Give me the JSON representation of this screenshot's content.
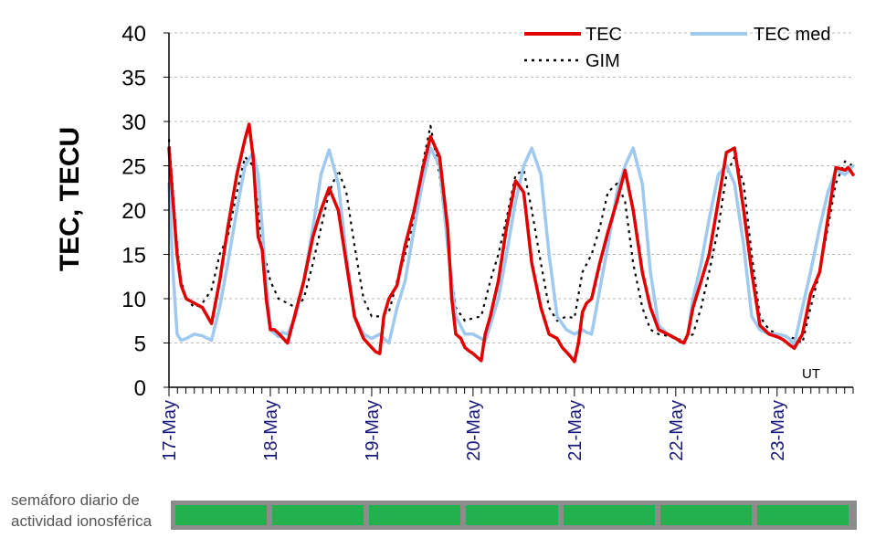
{
  "chart_data": {
    "type": "line",
    "ylabel": "TEC, TECU",
    "xlabel": "",
    "ylim": [
      0,
      40
    ],
    "yticks": [
      0,
      5,
      10,
      15,
      20,
      25,
      30,
      35,
      40
    ],
    "xlim": [
      0,
      6.75
    ],
    "day_labels": [
      "17-May",
      "18-May",
      "19-May",
      "20-May",
      "21-May",
      "22-May",
      "23-May"
    ],
    "x_unit_label": "UT",
    "grid": "horizontal dashed",
    "legend_position": "top-right",
    "series": [
      {
        "name": "TEC",
        "color": "#e00000",
        "style": "solid",
        "x": [
          0,
          0.04,
          0.08,
          0.12,
          0.17,
          0.25,
          0.33,
          0.42,
          0.5,
          0.58,
          0.67,
          0.75,
          0.79,
          0.83,
          0.88,
          0.92,
          0.96,
          1.0,
          1.04,
          1.08,
          1.12,
          1.17,
          1.25,
          1.33,
          1.42,
          1.5,
          1.58,
          1.67,
          1.75,
          1.83,
          1.92,
          2.0,
          2.04,
          2.08,
          2.12,
          2.17,
          2.25,
          2.33,
          2.42,
          2.5,
          2.58,
          2.67,
          2.75,
          2.79,
          2.83,
          2.88,
          2.92,
          2.96,
          3.0,
          3.04,
          3.08,
          3.12,
          3.17,
          3.25,
          3.33,
          3.42,
          3.5,
          3.58,
          3.67,
          3.75,
          3.83,
          3.88,
          3.92,
          3.96,
          4.0,
          4.04,
          4.08,
          4.12,
          4.17,
          4.25,
          4.33,
          4.42,
          4.5,
          4.58,
          4.67,
          4.75,
          4.83,
          4.92,
          5.0,
          5.04,
          5.08,
          5.12,
          5.17,
          5.25,
          5.33,
          5.42,
          5.5,
          5.58,
          5.67,
          5.75,
          5.83,
          5.92,
          6.0,
          6.04,
          6.08,
          6.12,
          6.17,
          6.25,
          6.33,
          6.42,
          6.5,
          6.58,
          6.67,
          6.7,
          6.75
        ],
        "values": [
          27,
          21,
          15,
          11.5,
          10,
          9.5,
          9,
          7.2,
          12,
          18,
          24,
          28,
          29.7,
          26,
          17,
          15.5,
          10,
          6.5,
          6.5,
          6.1,
          5.6,
          5.0,
          8.5,
          12,
          17,
          20,
          22.5,
          20,
          14,
          8,
          5.5,
          4.5,
          4.0,
          3.8,
          8,
          10,
          11.5,
          16,
          20,
          24.5,
          28.3,
          26,
          18,
          10,
          6,
          5.5,
          4.5,
          4.1,
          3.8,
          3.4,
          3.0,
          6,
          8,
          12,
          18,
          23.3,
          22,
          14,
          9,
          6,
          5.5,
          4.5,
          4.0,
          3.5,
          2.9,
          5,
          8.5,
          9.5,
          10,
          14,
          17.5,
          21,
          24.5,
          20,
          13,
          9,
          6.5,
          6,
          5.5,
          5.2,
          5.0,
          6,
          9,
          12,
          15,
          21,
          26.5,
          27,
          20,
          13,
          7,
          6,
          5.7,
          5.5,
          5.2,
          4.8,
          4.4,
          6,
          10.5,
          13,
          19,
          24.8,
          24.5,
          24.8,
          24
        ]
      },
      {
        "name": "TEC med",
        "color": "#9fc9ee",
        "style": "solid",
        "x": [
          0,
          0.04,
          0.08,
          0.12,
          0.17,
          0.25,
          0.33,
          0.42,
          0.5,
          0.58,
          0.67,
          0.75,
          0.83,
          0.88,
          0.92,
          0.96,
          1.0,
          1.08,
          1.12,
          1.17,
          1.25,
          1.33,
          1.42,
          1.5,
          1.58,
          1.67,
          1.75,
          1.83,
          1.92,
          2.0,
          2.08,
          2.12,
          2.17,
          2.25,
          2.33,
          2.42,
          2.5,
          2.58,
          2.67,
          2.75,
          2.83,
          2.92,
          3.0,
          3.08,
          3.12,
          3.17,
          3.25,
          3.33,
          3.42,
          3.5,
          3.58,
          3.67,
          3.75,
          3.83,
          3.92,
          4.0,
          4.08,
          4.12,
          4.17,
          4.25,
          4.33,
          4.42,
          4.5,
          4.58,
          4.67,
          4.75,
          4.83,
          4.92,
          5.0,
          5.08,
          5.12,
          5.17,
          5.25,
          5.33,
          5.42,
          5.5,
          5.58,
          5.67,
          5.75,
          5.83,
          5.92,
          6.0,
          6.08,
          6.12,
          6.17,
          6.25,
          6.33,
          6.42,
          6.5,
          6.58,
          6.67,
          6.75
        ],
        "values": [
          23,
          13,
          6,
          5.3,
          5.5,
          6,
          5.8,
          5.3,
          9,
          14,
          20,
          25,
          26.5,
          24,
          18,
          12,
          6.5,
          5.7,
          6.2,
          6.0,
          8,
          12,
          18,
          24,
          26.8,
          23,
          15,
          8,
          6,
          5.5,
          6,
          5.5,
          5.0,
          9,
          12,
          18,
          23,
          27,
          25,
          16,
          8,
          6,
          6,
          5.5,
          5.2,
          7,
          10,
          15,
          21,
          25,
          27,
          24,
          15,
          8,
          6.5,
          6,
          6.5,
          6.2,
          6,
          11,
          16,
          22,
          25,
          27,
          23,
          13,
          7,
          6,
          5.5,
          5.0,
          6,
          10,
          14,
          19,
          24,
          25,
          23,
          16,
          8,
          6.5,
          6,
          6,
          5.8,
          5.5,
          4.8,
          9,
          13,
          18,
          22,
          24.5,
          24,
          25
        ]
      },
      {
        "name": "GIM",
        "color": "#000000",
        "style": "dotted",
        "x": [
          0,
          0.04,
          0.08,
          0.12,
          0.17,
          0.25,
          0.33,
          0.42,
          0.5,
          0.58,
          0.67,
          0.75,
          0.83,
          0.88,
          0.92,
          1.0,
          1.08,
          1.17,
          1.25,
          1.33,
          1.42,
          1.5,
          1.58,
          1.67,
          1.75,
          1.83,
          1.92,
          2.0,
          2.08,
          2.17,
          2.25,
          2.33,
          2.42,
          2.5,
          2.58,
          2.67,
          2.75,
          2.83,
          2.92,
          3.0,
          3.08,
          3.17,
          3.25,
          3.33,
          3.42,
          3.5,
          3.58,
          3.67,
          3.75,
          3.83,
          3.92,
          4.0,
          4.08,
          4.17,
          4.25,
          4.33,
          4.42,
          4.5,
          4.58,
          4.67,
          4.75,
          4.83,
          4.92,
          5.0,
          5.08,
          5.17,
          5.25,
          5.33,
          5.42,
          5.5,
          5.58,
          5.67,
          5.75,
          5.83,
          5.92,
          6.0,
          6.08,
          6.17,
          6.25,
          6.33,
          6.42,
          6.5,
          6.58,
          6.67,
          6.75
        ],
        "values": [
          28,
          22,
          16,
          12,
          10,
          9,
          9.5,
          11,
          15,
          17,
          22,
          26,
          25,
          20,
          16,
          12,
          10,
          9.5,
          9,
          10,
          14,
          18,
          22,
          24.5,
          22,
          16,
          10,
          8,
          8,
          8.5,
          12,
          15,
          19,
          25,
          29.5,
          24,
          16,
          9,
          7.5,
          7.8,
          8,
          12,
          15,
          19,
          24,
          24.5,
          20,
          14,
          9,
          7.5,
          8,
          7.8,
          13,
          15,
          18,
          22,
          23,
          21,
          14,
          9,
          6.5,
          6,
          5.8,
          5.5,
          5.3,
          6,
          9,
          13,
          18,
          24,
          26,
          23,
          15,
          8,
          6.5,
          6,
          5.8,
          5.5,
          5.0,
          9,
          13,
          18,
          23,
          25.5,
          25
        ]
      }
    ]
  },
  "semaforo": {
    "label_line1": "semáforo diario de",
    "label_line2": "actividad ionosférica",
    "days": [
      {
        "day": "17-May",
        "color": "#22b14c"
      },
      {
        "day": "18-May",
        "color": "#22b14c"
      },
      {
        "day": "19-May",
        "color": "#22b14c"
      },
      {
        "day": "20-May",
        "color": "#22b14c"
      },
      {
        "day": "21-May",
        "color": "#22b14c"
      },
      {
        "day": "22-May",
        "color": "#22b14c"
      },
      {
        "day": "23-May",
        "color": "#22b14c"
      }
    ]
  }
}
